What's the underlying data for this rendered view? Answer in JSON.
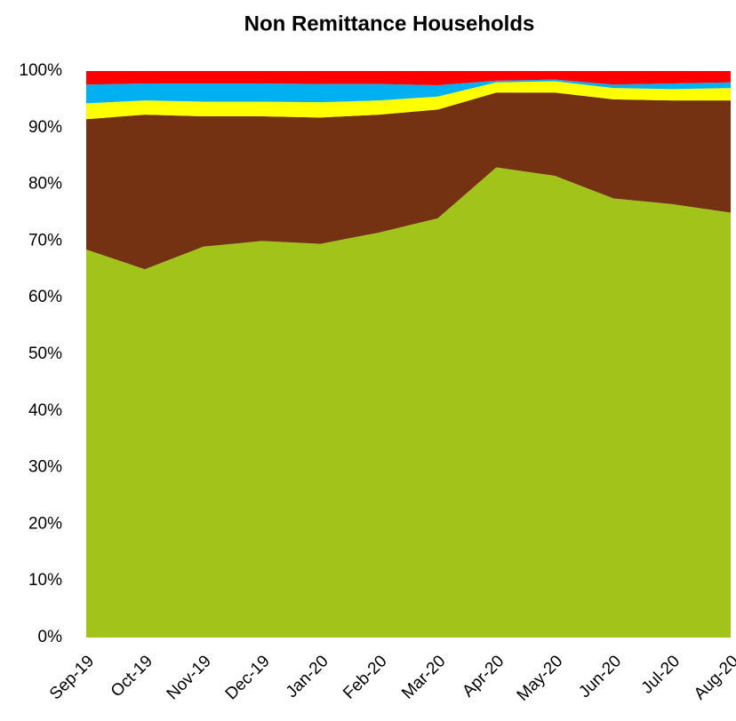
{
  "chart_data": {
    "type": "stacked_area",
    "title": "Non Remittance Households",
    "categories": [
      "Sep-19",
      "Oct-19",
      "Nov-19",
      "Dec-19",
      "Jan-20",
      "Feb-20",
      "Mar-20",
      "Apr-20",
      "May-20",
      "Jun-20",
      "Jul-20",
      "Aug-20"
    ],
    "series": [
      {
        "color": "#a2c41a",
        "values": [
          68.5,
          65,
          69,
          70,
          69.5,
          71.5,
          74,
          83,
          81.5,
          77.5,
          76.5,
          75
        ]
      },
      {
        "color": "#743212",
        "values": [
          23,
          27.3,
          23,
          22,
          22.3,
          20.8,
          19.2,
          13.2,
          14.7,
          17.5,
          18.3,
          19.8
        ]
      },
      {
        "color": "#ffff00",
        "values": [
          2.8,
          2.5,
          2.6,
          2.6,
          2.7,
          2.5,
          2.3,
          1.8,
          2,
          2,
          2,
          2.2
        ]
      },
      {
        "color": "#00b0f0",
        "values": [
          3.3,
          3,
          3.2,
          3.2,
          3.2,
          2.9,
          2,
          0.3,
          0.3,
          0.6,
          1,
          1
        ]
      },
      {
        "color": "#ff0000",
        "values": [
          2.4,
          2.2,
          2.2,
          2.2,
          2.3,
          2.3,
          2.5,
          1.7,
          1.5,
          2.4,
          2.2,
          2
        ]
      }
    ],
    "ylim": [
      0,
      100
    ],
    "yticks": [
      {
        "value": 0,
        "label": "0%"
      },
      {
        "value": 10,
        "label": "10%"
      },
      {
        "value": 20,
        "label": "20%"
      },
      {
        "value": 30,
        "label": "30%"
      },
      {
        "value": 40,
        "label": "40%"
      },
      {
        "value": 50,
        "label": "50%"
      },
      {
        "value": 60,
        "label": "60%"
      },
      {
        "value": 70,
        "label": "70%"
      },
      {
        "value": 80,
        "label": "80%"
      },
      {
        "value": 90,
        "label": "90%"
      },
      {
        "value": 100,
        "label": "100%"
      }
    ],
    "grid": false
  }
}
